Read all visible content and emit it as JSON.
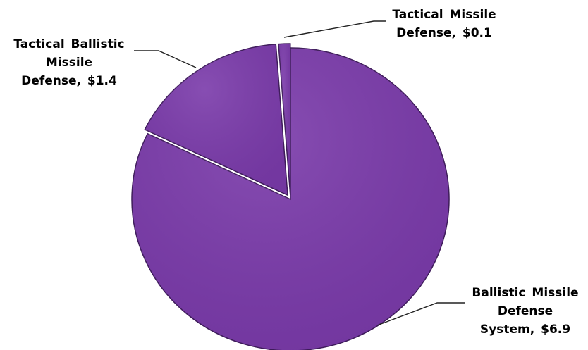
{
  "chart_data": {
    "type": "pie",
    "slices": [
      {
        "label": "Ballistic Missile Defense System",
        "value": 6.9,
        "color": "#7a3aaa",
        "label_lines": [
          "Ballistic Missile",
          "Defense",
          "System, $6.9"
        ]
      },
      {
        "label": "Tactical Ballistic Missile Defense",
        "value": 1.4,
        "color": "#7a3aaa",
        "label_lines": [
          "Tactical Ballistic",
          "Missile",
          "Defense, $1.4"
        ]
      },
      {
        "label": "Tactical Missile Defense",
        "value": 0.1,
        "color": "#7a3aaa",
        "label_lines": [
          "Tactical Missile",
          "Defense, $0.1"
        ]
      }
    ],
    "start_angle_deg": 0,
    "direction": "clockwise",
    "exploded": true,
    "legend": "none"
  }
}
